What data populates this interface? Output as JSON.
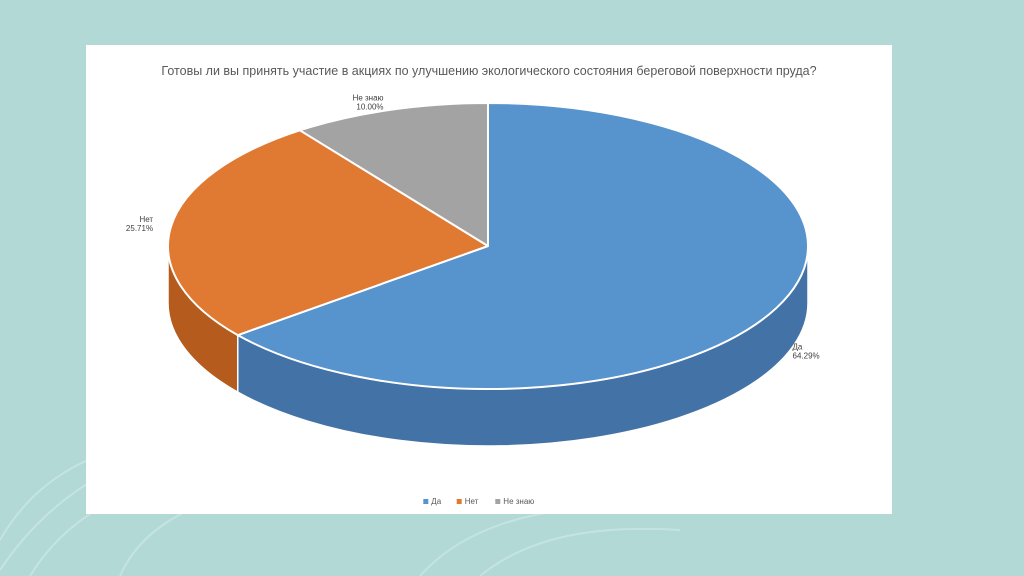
{
  "colors": {
    "background": "#b2d9d6",
    "card": "#ffffff",
    "text": "#595959"
  },
  "chart_data": {
    "type": "pie",
    "title": "Готовы ли вы принять участие в акциях по улучшению экологического состояния береговой поверхности пруда?",
    "slices": [
      {
        "label": "Да",
        "value": 64.29,
        "value_label": "64.29%",
        "color": "#5793cc",
        "dark": "#4372a6"
      },
      {
        "label": "Нет",
        "value": 25.71,
        "value_label": "25.71%",
        "color": "#e07931",
        "dark": "#b45b1d"
      },
      {
        "label": "Не знаю",
        "value": 10.0,
        "value_label": "10.00%",
        "color": "#a3a3a3",
        "dark": "#7c7c7c"
      }
    ],
    "legend": {
      "placement": "bottom",
      "entries": [
        "Да",
        "Нет",
        "Не знаю"
      ]
    }
  }
}
